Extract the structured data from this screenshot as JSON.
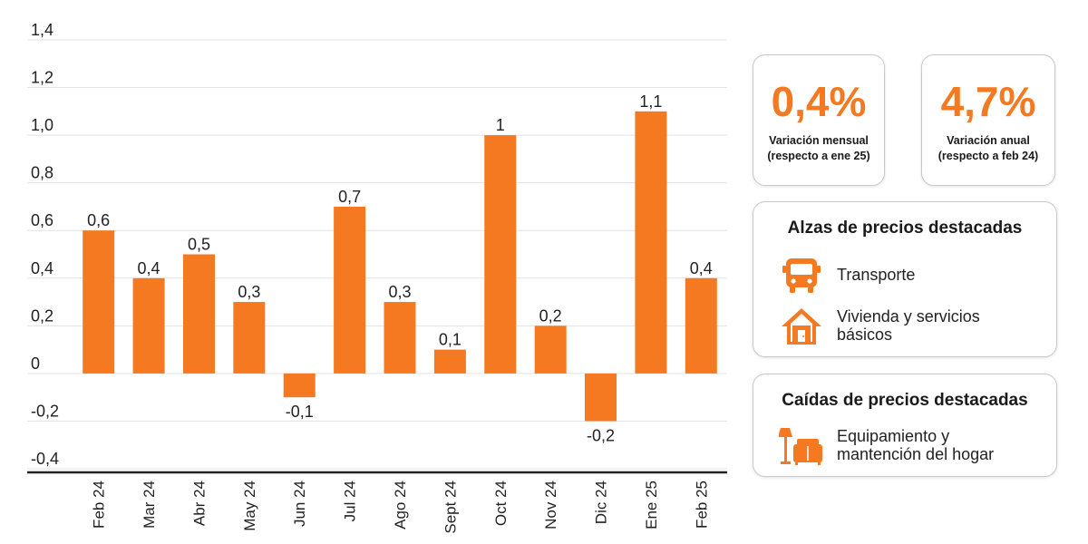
{
  "chart_data": {
    "type": "bar",
    "categories": [
      "Feb 24",
      "Mar 24",
      "Abr 24",
      "May 24",
      "Jun 24",
      "Jul 24",
      "Ago 24",
      "Sept 24",
      "Oct 24",
      "Nov 24",
      "Dic 24",
      "Ene 25",
      "Feb 25"
    ],
    "values": [
      0.6,
      0.4,
      0.5,
      0.3,
      -0.1,
      0.7,
      0.3,
      0.1,
      1.0,
      0.2,
      -0.2,
      1.1,
      0.4
    ],
    "data_labels": [
      "0,6",
      "0,4",
      "0,5",
      "0,3",
      "-0,1",
      "0,7",
      "0,3",
      "0,1",
      "1",
      "0,2",
      "-0,2",
      "1,1",
      "0,4"
    ],
    "ylim": [
      -0.4,
      1.4
    ],
    "yticks": [
      1.4,
      1.2,
      1.0,
      0.8,
      0.6,
      0.4,
      0.2,
      0,
      -0.2,
      -0.4
    ],
    "ytick_labels": [
      "1,4",
      "1,2",
      "1,0",
      "0,8",
      "0,6",
      "0,4",
      "0,2",
      "0",
      "-0,2",
      "-0,4"
    ],
    "grid": true,
    "bar_color": "#f47920"
  },
  "kpis": [
    {
      "value": "0,4%",
      "label": "Variación mensual",
      "sub": "(respecto a ene 25)"
    },
    {
      "value": "4,7%",
      "label": "Variación anual",
      "sub": "(respecto a feb 24)"
    }
  ],
  "alzas": {
    "title": "Alzas de precios destacadas",
    "items": [
      {
        "icon": "bus-icon",
        "label": "Transporte"
      },
      {
        "icon": "house-icon",
        "label_line1": "Vivienda y servicios",
        "label_line2": "básicos"
      }
    ]
  },
  "caidas": {
    "title": "Caídas de precios destacadas",
    "items": [
      {
        "icon": "furniture-icon",
        "label_line1": "Equipamiento y",
        "label_line2": "mantención del hogar"
      }
    ]
  },
  "colors": {
    "accent": "#f47920",
    "text": "#1a1a1a",
    "grid": "#e3e3e3"
  }
}
